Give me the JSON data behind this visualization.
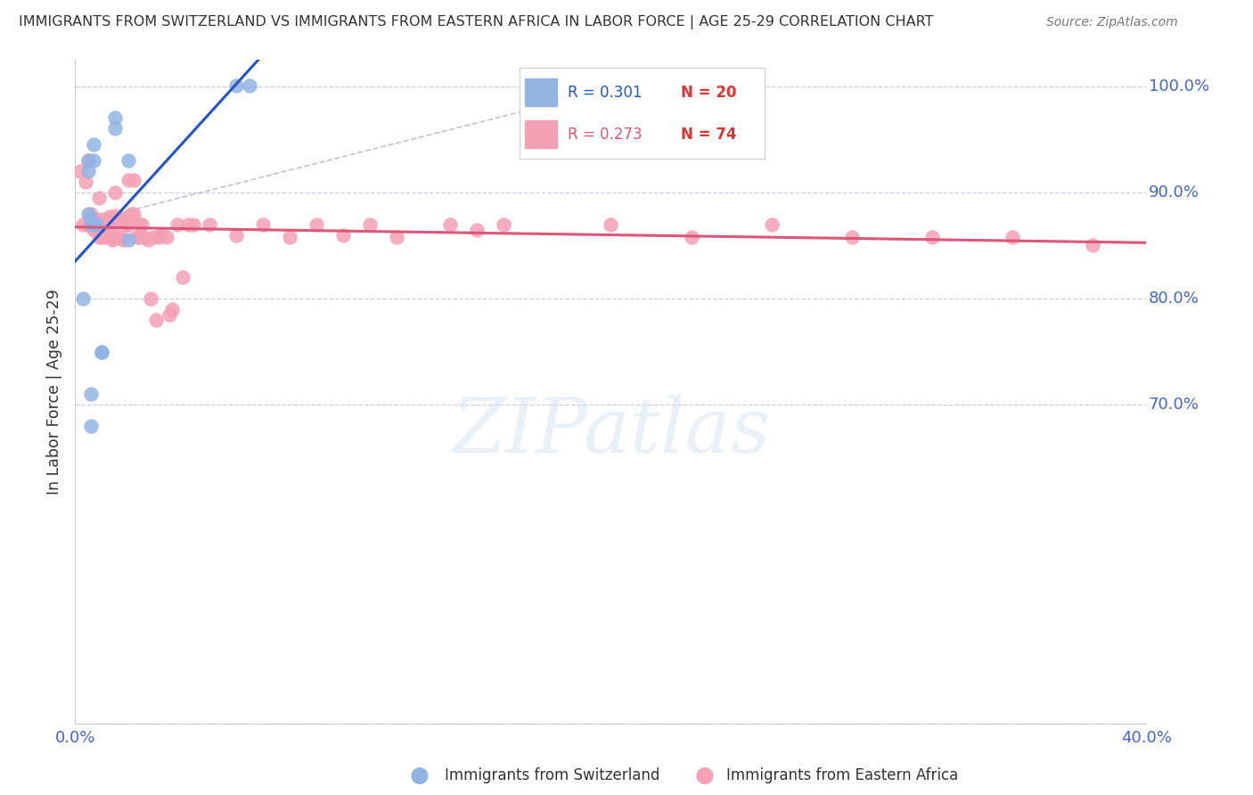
{
  "title": "IMMIGRANTS FROM SWITZERLAND VS IMMIGRANTS FROM EASTERN AFRICA IN LABOR FORCE | AGE 25-29 CORRELATION CHART",
  "source": "Source: ZipAtlas.com",
  "ylabel": "In Labor Force | Age 25-29",
  "xlim": [
    0.0,
    0.4
  ],
  "ylim": [
    0.4,
    1.025
  ],
  "swiss_R": 0.301,
  "swiss_N": 20,
  "ea_R": 0.273,
  "ea_N": 74,
  "swiss_color": "#92b4e3",
  "ea_color": "#f4a0b5",
  "swiss_line_color": "#2255cc",
  "ea_line_color": "#dd5577",
  "axis_color": "#4466cc",
  "grid_color": "#ccccdd",
  "title_color": "#333333",
  "swiss_x": [
    0.003,
    0.005,
    0.005,
    0.005,
    0.006,
    0.006,
    0.006,
    0.006,
    0.007,
    0.007,
    0.007,
    0.008,
    0.01,
    0.01,
    0.015,
    0.015,
    0.02,
    0.02,
    0.06,
    0.065
  ],
  "swiss_y": [
    0.8,
    0.92,
    0.93,
    0.88,
    0.875,
    0.87,
    0.68,
    0.71,
    0.93,
    0.945,
    0.87,
    0.87,
    0.75,
    0.75,
    0.96,
    0.97,
    0.93,
    0.855,
    1.001,
    1.001
  ],
  "ea_x": [
    0.002,
    0.003,
    0.004,
    0.005,
    0.005,
    0.006,
    0.006,
    0.007,
    0.007,
    0.008,
    0.008,
    0.009,
    0.009,
    0.01,
    0.01,
    0.011,
    0.011,
    0.012,
    0.012,
    0.013,
    0.013,
    0.014,
    0.014,
    0.015,
    0.015,
    0.015,
    0.016,
    0.016,
    0.017,
    0.017,
    0.018,
    0.018,
    0.019,
    0.02,
    0.02,
    0.021,
    0.022,
    0.022,
    0.023,
    0.024,
    0.024,
    0.025,
    0.026,
    0.027,
    0.028,
    0.029,
    0.03,
    0.031,
    0.032,
    0.034,
    0.035,
    0.036,
    0.038,
    0.04,
    0.042,
    0.044,
    0.05,
    0.06,
    0.07,
    0.08,
    0.09,
    0.1,
    0.11,
    0.12,
    0.14,
    0.15,
    0.16,
    0.2,
    0.23,
    0.26,
    0.29,
    0.32,
    0.35,
    0.38
  ],
  "ea_y": [
    0.92,
    0.87,
    0.91,
    0.87,
    0.93,
    0.87,
    0.88,
    0.87,
    0.865,
    0.875,
    0.865,
    0.895,
    0.858,
    0.875,
    0.858,
    0.87,
    0.858,
    0.873,
    0.865,
    0.877,
    0.858,
    0.875,
    0.855,
    0.9,
    0.878,
    0.86,
    0.875,
    0.858,
    0.875,
    0.858,
    0.875,
    0.855,
    0.87,
    0.912,
    0.87,
    0.88,
    0.912,
    0.88,
    0.858,
    0.87,
    0.858,
    0.87,
    0.858,
    0.855,
    0.8,
    0.858,
    0.78,
    0.858,
    0.86,
    0.858,
    0.785,
    0.79,
    0.87,
    0.82,
    0.87,
    0.87,
    0.87,
    0.86,
    0.87,
    0.858,
    0.87,
    0.86,
    0.87,
    0.858,
    0.87,
    0.865,
    0.87,
    0.87,
    0.858,
    0.87,
    0.858,
    0.858,
    0.858,
    0.85
  ]
}
